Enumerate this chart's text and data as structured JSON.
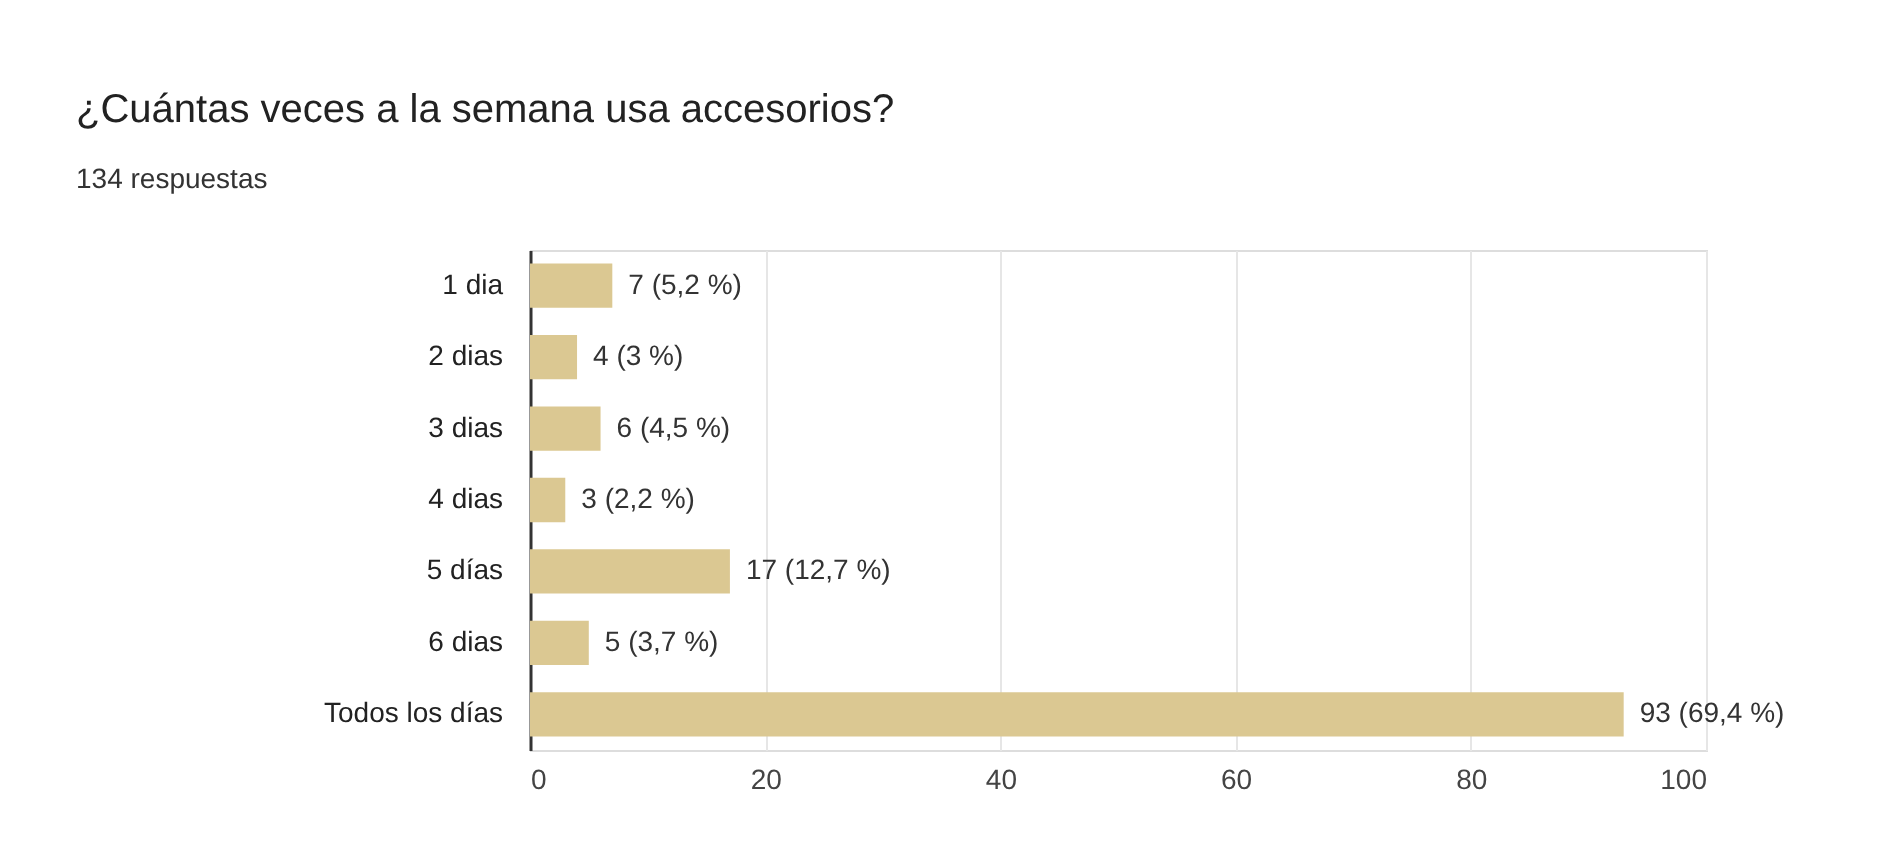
{
  "chart_data": {
    "type": "bar",
    "orientation": "horizontal",
    "title": "¿Cuántas veces a la semana usa accesorios?",
    "subtitle": "134 respuestas",
    "categories": [
      "1 dia",
      "2 dias",
      "3 dias",
      "4 dias",
      "5 días",
      "6 dias",
      "Todos los días"
    ],
    "values": [
      7,
      4,
      6,
      3,
      17,
      5,
      93
    ],
    "value_labels": [
      "7 (5,2 %)",
      "4 (3 %)",
      "6 (4,5 %)",
      "3 (2,2 %)",
      "17 (12,7 %)",
      "5 (3,7 %)",
      "93 (69,4 %)"
    ],
    "color": "#dbc892",
    "xlim": [
      0,
      100
    ],
    "xticks": [
      0,
      20,
      40,
      60,
      80,
      100
    ],
    "grid": "x"
  }
}
